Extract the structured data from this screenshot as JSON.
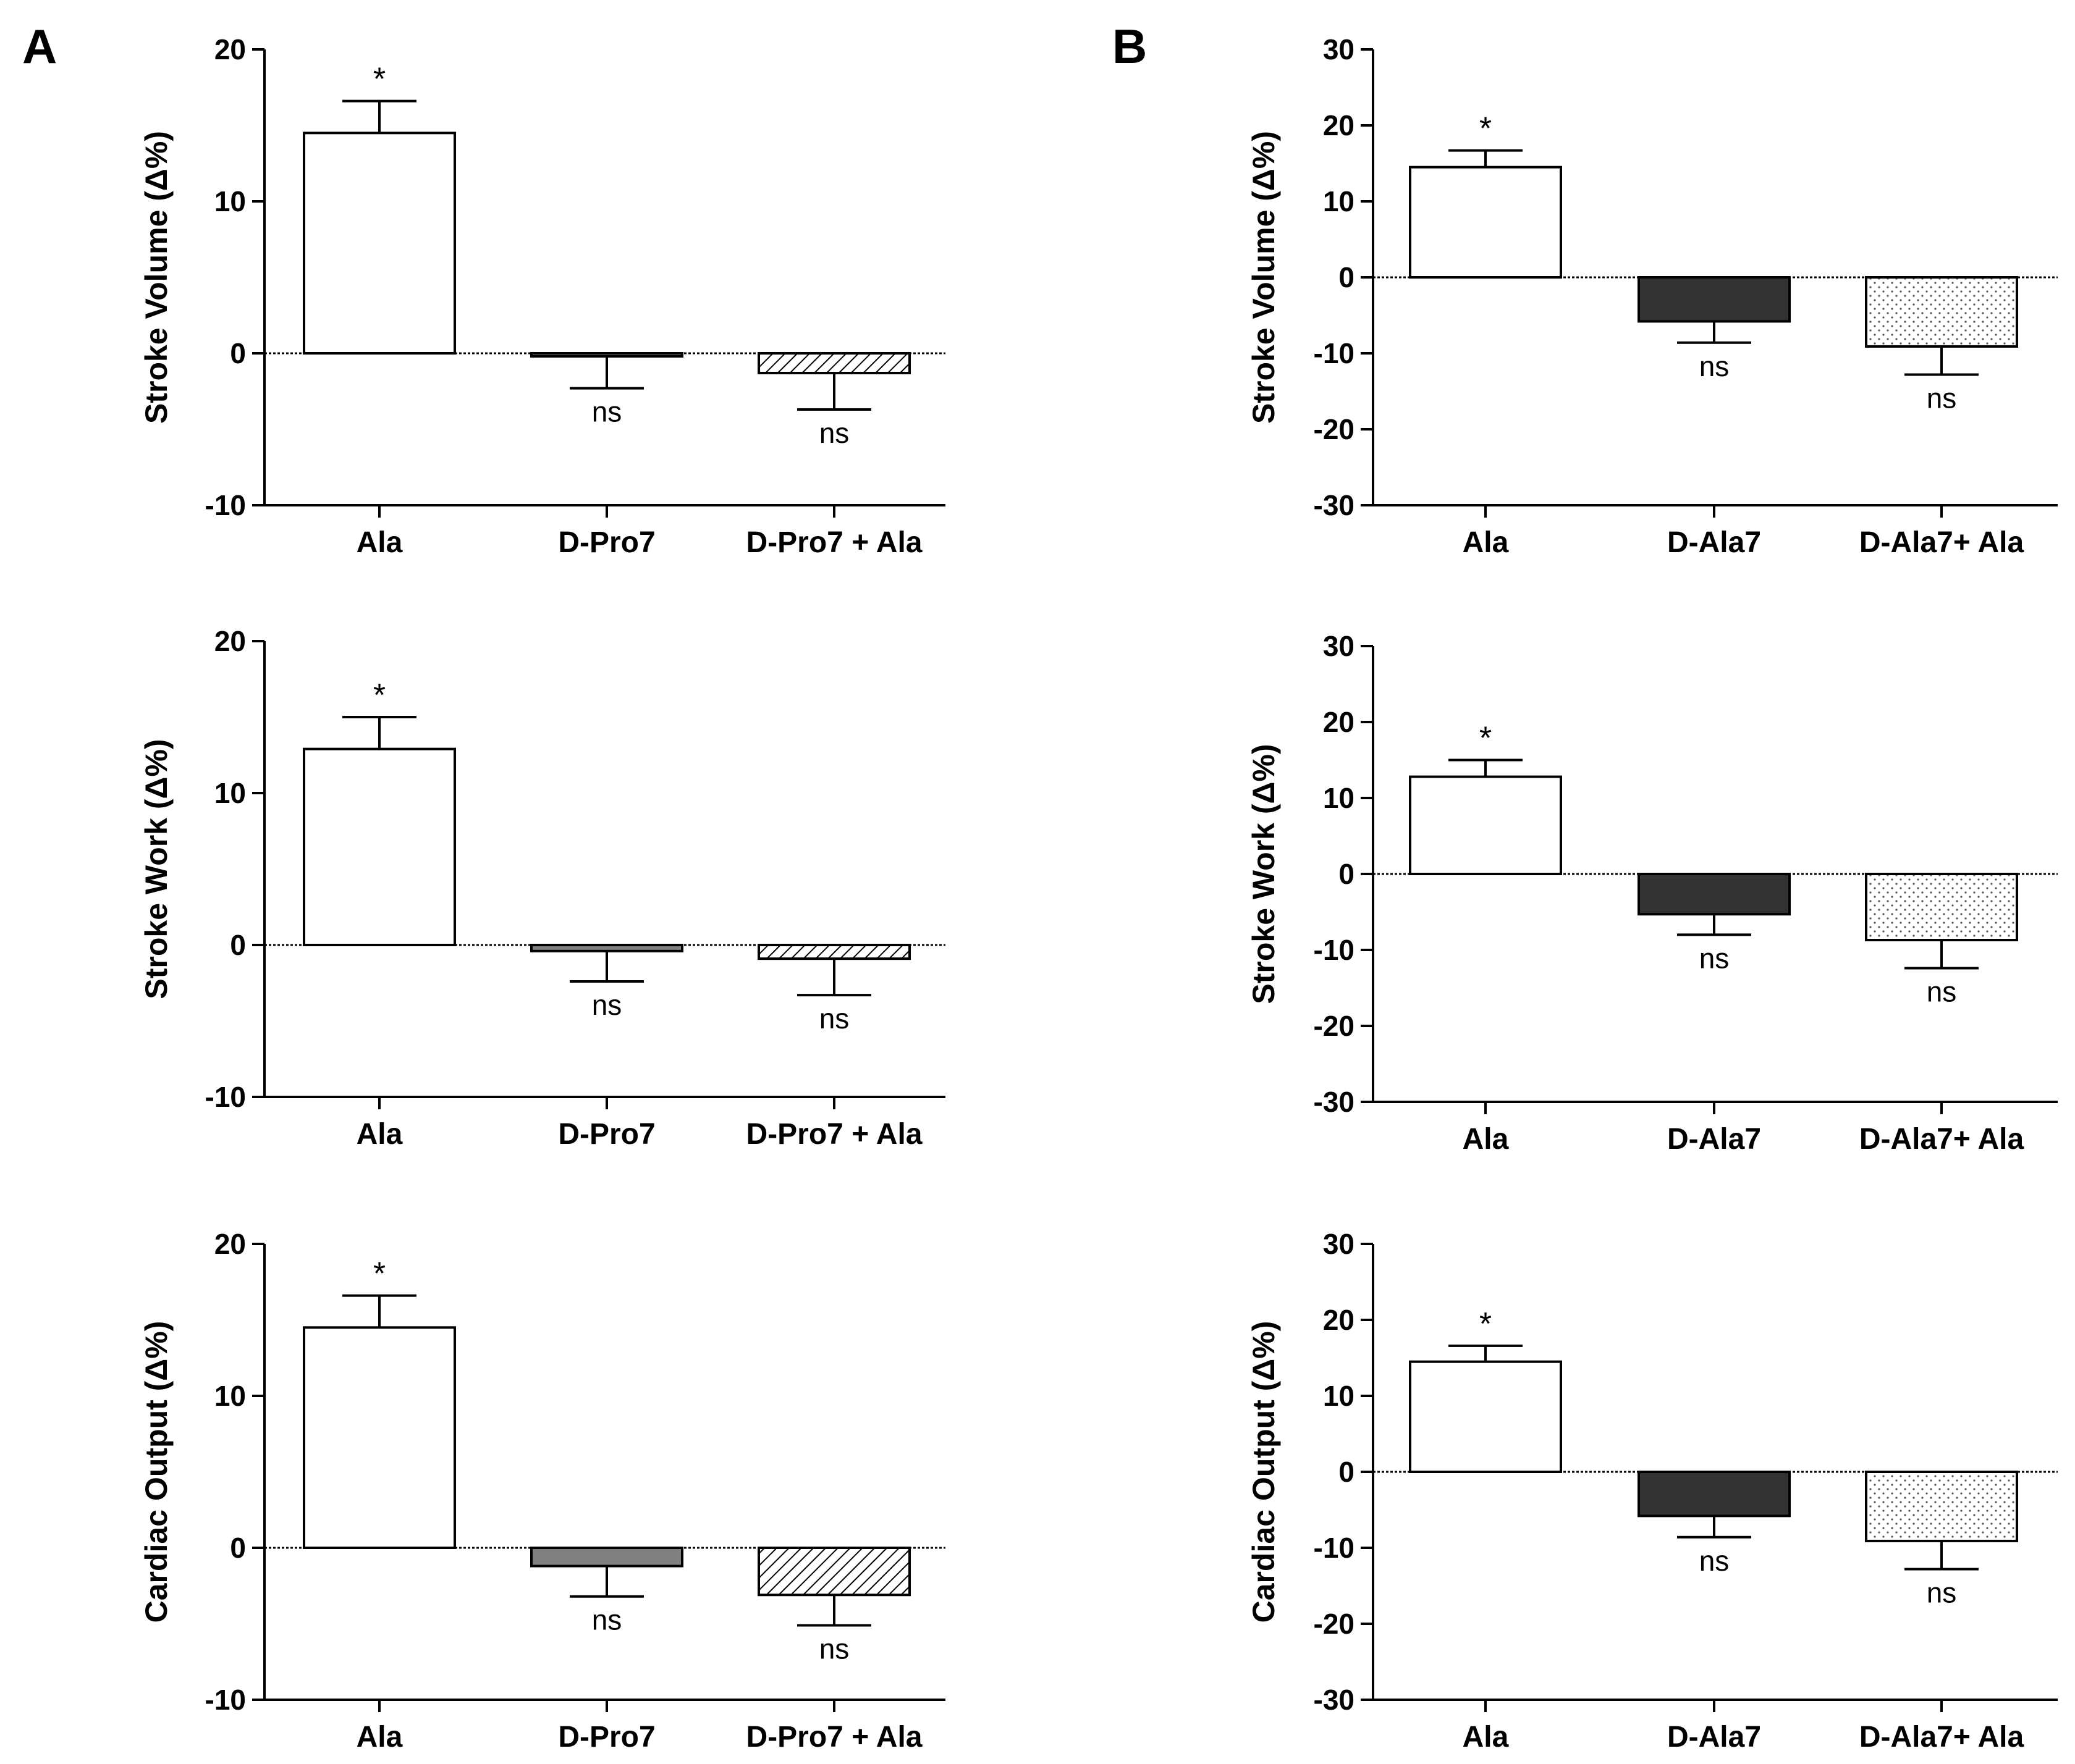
{
  "panels": {
    "A": "A",
    "B": "B"
  },
  "colors": {
    "white": "#ffffff",
    "gray": "#808080",
    "dark": "#333333",
    "axis": "#000000"
  },
  "chart_data": [
    {
      "id": "A1",
      "type": "bar",
      "panel": "A",
      "ylabel": "Stroke Volume (Δ%)",
      "ylim": [
        -10,
        20
      ],
      "yticks": [
        -10,
        0,
        10,
        20
      ],
      "categories": [
        "Ala",
        "D-Pro7",
        "D-Pro7 + Ala"
      ],
      "values": [
        14.5,
        -0.2,
        -1.3
      ],
      "errors": [
        2.1,
        2.1,
        2.4
      ],
      "annotations": [
        "*",
        "ns",
        "ns"
      ],
      "fills": [
        "white",
        "gray",
        "hatch"
      ]
    },
    {
      "id": "A2",
      "type": "bar",
      "panel": "A",
      "ylabel": "Stroke Work (Δ%)",
      "ylim": [
        -10,
        20
      ],
      "yticks": [
        -10,
        0,
        10,
        20
      ],
      "categories": [
        "Ala",
        "D-Pro7",
        "D-Pro7 + Ala"
      ],
      "values": [
        12.9,
        -0.4,
        -0.9
      ],
      "errors": [
        2.1,
        2.0,
        2.4
      ],
      "annotations": [
        "*",
        "ns",
        "ns"
      ],
      "fills": [
        "white",
        "gray",
        "hatch"
      ]
    },
    {
      "id": "A3",
      "type": "bar",
      "panel": "A",
      "ylabel": "Cardiac Output (Δ%)",
      "ylim": [
        -10,
        20
      ],
      "yticks": [
        -10,
        0,
        10,
        20
      ],
      "categories": [
        "Ala",
        "D-Pro7",
        "D-Pro7 + Ala"
      ],
      "values": [
        14.5,
        -1.2,
        -3.1
      ],
      "errors": [
        2.1,
        2.0,
        2.0
      ],
      "annotations": [
        "*",
        "ns",
        "ns"
      ],
      "fills": [
        "white",
        "gray",
        "hatch"
      ]
    },
    {
      "id": "B1",
      "type": "bar",
      "panel": "B",
      "ylabel": "Stroke Volume (Δ%)",
      "ylim": [
        -30,
        30
      ],
      "yticks": [
        -30,
        -20,
        -10,
        0,
        10,
        20,
        30
      ],
      "categories": [
        "Ala",
        "D-Ala7",
        "D-Ala7+ Ala"
      ],
      "values": [
        14.5,
        -5.8,
        -9.1
      ],
      "errors": [
        2.2,
        2.8,
        3.7
      ],
      "annotations": [
        "*",
        "ns",
        "ns"
      ],
      "fills": [
        "white",
        "dark",
        "dots"
      ]
    },
    {
      "id": "B2",
      "type": "bar",
      "panel": "B",
      "ylabel": "Stroke Work (Δ%)",
      "ylim": [
        -30,
        30
      ],
      "yticks": [
        -30,
        -20,
        -10,
        0,
        10,
        20,
        30
      ],
      "categories": [
        "Ala",
        "D-Ala7",
        "D-Ala7+ Ala"
      ],
      "values": [
        12.8,
        -5.3,
        -8.7
      ],
      "errors": [
        2.2,
        2.7,
        3.7
      ],
      "annotations": [
        "*",
        "ns",
        "ns"
      ],
      "fills": [
        "white",
        "dark",
        "dots"
      ]
    },
    {
      "id": "B3",
      "type": "bar",
      "panel": "B",
      "ylabel": "Cardiac Output (Δ%)",
      "ylim": [
        -30,
        30
      ],
      "yticks": [
        -30,
        -20,
        -10,
        0,
        10,
        20,
        30
      ],
      "categories": [
        "Ala",
        "D-Ala7",
        "D-Ala7+ Ala"
      ],
      "values": [
        14.5,
        -5.8,
        -9.1
      ],
      "errors": [
        2.1,
        2.8,
        3.7
      ],
      "annotations": [
        "*",
        "ns",
        "ns"
      ],
      "fills": [
        "white",
        "dark",
        "dots"
      ]
    }
  ]
}
